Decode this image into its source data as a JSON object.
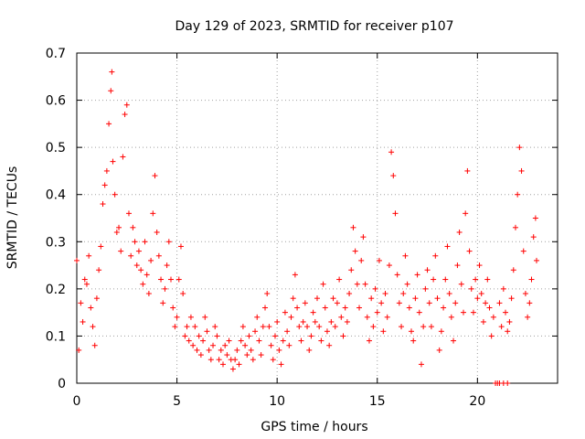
{
  "chart_data": {
    "type": "scatter",
    "title": "Day 129 of 2023, SRMTID for receiver p107",
    "xlabel": "GPS time / hours",
    "ylabel": "SRMTID / TECUs",
    "xlim": [
      0,
      24
    ],
    "ylim": [
      0,
      0.7
    ],
    "x_ticks": [
      0,
      5,
      10,
      15,
      20
    ],
    "x_tick_labels": [
      "0",
      "5",
      "10",
      "15",
      "20"
    ],
    "y_ticks": [
      0,
      0.1,
      0.2,
      0.3,
      0.4,
      0.5,
      0.6,
      0.7
    ],
    "y_tick_labels": [
      "0",
      "0.1",
      "0.2",
      "0.3",
      "0.4",
      "0.5",
      "0.6",
      "0.7"
    ],
    "grid": true,
    "marker": "+",
    "color": "#ff0000",
    "series": [
      {
        "name": "SRMTID p107",
        "points": [
          [
            0.0,
            0.26
          ],
          [
            0.1,
            0.07
          ],
          [
            0.2,
            0.17
          ],
          [
            0.3,
            0.13
          ],
          [
            0.4,
            0.22
          ],
          [
            0.5,
            0.21
          ],
          [
            0.6,
            0.27
          ],
          [
            0.7,
            0.16
          ],
          [
            0.8,
            0.12
          ],
          [
            0.9,
            0.08
          ],
          [
            1.0,
            0.18
          ],
          [
            1.1,
            0.24
          ],
          [
            1.2,
            0.29
          ],
          [
            1.3,
            0.38
          ],
          [
            1.4,
            0.42
          ],
          [
            1.5,
            0.45
          ],
          [
            1.6,
            0.55
          ],
          [
            1.7,
            0.62
          ],
          [
            1.75,
            0.66
          ],
          [
            1.8,
            0.47
          ],
          [
            1.9,
            0.4
          ],
          [
            2.0,
            0.32
          ],
          [
            2.1,
            0.33
          ],
          [
            2.2,
            0.28
          ],
          [
            2.3,
            0.48
          ],
          [
            2.4,
            0.57
          ],
          [
            2.5,
            0.59
          ],
          [
            2.6,
            0.36
          ],
          [
            2.7,
            0.27
          ],
          [
            2.8,
            0.33
          ],
          [
            2.9,
            0.3
          ],
          [
            3.0,
            0.25
          ],
          [
            3.1,
            0.28
          ],
          [
            3.2,
            0.24
          ],
          [
            3.3,
            0.21
          ],
          [
            3.4,
            0.3
          ],
          [
            3.5,
            0.23
          ],
          [
            3.6,
            0.19
          ],
          [
            3.7,
            0.26
          ],
          [
            3.8,
            0.36
          ],
          [
            3.9,
            0.44
          ],
          [
            4.0,
            0.32
          ],
          [
            4.1,
            0.27
          ],
          [
            4.2,
            0.22
          ],
          [
            4.3,
            0.17
          ],
          [
            4.4,
            0.2
          ],
          [
            4.5,
            0.25
          ],
          [
            4.6,
            0.3
          ],
          [
            4.7,
            0.22
          ],
          [
            4.8,
            0.16
          ],
          [
            4.9,
            0.12
          ],
          [
            5.0,
            0.14
          ],
          [
            5.1,
            0.22
          ],
          [
            5.2,
            0.29
          ],
          [
            5.3,
            0.19
          ],
          [
            5.4,
            0.1
          ],
          [
            5.5,
            0.12
          ],
          [
            5.6,
            0.09
          ],
          [
            5.7,
            0.14
          ],
          [
            5.8,
            0.08
          ],
          [
            5.9,
            0.12
          ],
          [
            6.0,
            0.07
          ],
          [
            6.1,
            0.1
          ],
          [
            6.2,
            0.06
          ],
          [
            6.3,
            0.09
          ],
          [
            6.4,
            0.14
          ],
          [
            6.5,
            0.11
          ],
          [
            6.6,
            0.07
          ],
          [
            6.7,
            0.05
          ],
          [
            6.8,
            0.08
          ],
          [
            6.9,
            0.12
          ],
          [
            7.0,
            0.1
          ],
          [
            7.1,
            0.05
          ],
          [
            7.2,
            0.07
          ],
          [
            7.3,
            0.04
          ],
          [
            7.4,
            0.08
          ],
          [
            7.5,
            0.06
          ],
          [
            7.6,
            0.09
          ],
          [
            7.7,
            0.05
          ],
          [
            7.8,
            0.03
          ],
          [
            7.9,
            0.05
          ],
          [
            8.0,
            0.07
          ],
          [
            8.1,
            0.04
          ],
          [
            8.2,
            0.09
          ],
          [
            8.3,
            0.12
          ],
          [
            8.4,
            0.08
          ],
          [
            8.5,
            0.06
          ],
          [
            8.6,
            0.1
          ],
          [
            8.7,
            0.07
          ],
          [
            8.8,
            0.05
          ],
          [
            8.9,
            0.11
          ],
          [
            9.0,
            0.14
          ],
          [
            9.1,
            0.09
          ],
          [
            9.2,
            0.06
          ],
          [
            9.3,
            0.12
          ],
          [
            9.4,
            0.16
          ],
          [
            9.5,
            0.19
          ],
          [
            9.6,
            0.12
          ],
          [
            9.7,
            0.08
          ],
          [
            9.8,
            0.05
          ],
          [
            9.9,
            0.1
          ],
          [
            10.0,
            0.13
          ],
          [
            10.1,
            0.07
          ],
          [
            10.2,
            0.04
          ],
          [
            10.3,
            0.09
          ],
          [
            10.4,
            0.15
          ],
          [
            10.5,
            0.11
          ],
          [
            10.6,
            0.08
          ],
          [
            10.7,
            0.14
          ],
          [
            10.8,
            0.18
          ],
          [
            10.9,
            0.23
          ],
          [
            11.0,
            0.16
          ],
          [
            11.1,
            0.12
          ],
          [
            11.2,
            0.09
          ],
          [
            11.3,
            0.13
          ],
          [
            11.4,
            0.17
          ],
          [
            11.5,
            0.12
          ],
          [
            11.6,
            0.07
          ],
          [
            11.7,
            0.1
          ],
          [
            11.8,
            0.15
          ],
          [
            11.9,
            0.13
          ],
          [
            12.0,
            0.18
          ],
          [
            12.1,
            0.12
          ],
          [
            12.2,
            0.09
          ],
          [
            12.3,
            0.21
          ],
          [
            12.4,
            0.16
          ],
          [
            12.5,
            0.11
          ],
          [
            12.6,
            0.08
          ],
          [
            12.7,
            0.13
          ],
          [
            12.8,
            0.18
          ],
          [
            12.9,
            0.12
          ],
          [
            13.0,
            0.17
          ],
          [
            13.1,
            0.22
          ],
          [
            13.2,
            0.14
          ],
          [
            13.3,
            0.1
          ],
          [
            13.4,
            0.16
          ],
          [
            13.5,
            0.13
          ],
          [
            13.6,
            0.19
          ],
          [
            13.7,
            0.24
          ],
          [
            13.8,
            0.33
          ],
          [
            13.9,
            0.28
          ],
          [
            14.0,
            0.21
          ],
          [
            14.1,
            0.16
          ],
          [
            14.2,
            0.26
          ],
          [
            14.3,
            0.31
          ],
          [
            14.4,
            0.21
          ],
          [
            14.5,
            0.14
          ],
          [
            14.6,
            0.09
          ],
          [
            14.7,
            0.18
          ],
          [
            14.8,
            0.12
          ],
          [
            14.9,
            0.2
          ],
          [
            15.0,
            0.15
          ],
          [
            15.1,
            0.26
          ],
          [
            15.2,
            0.17
          ],
          [
            15.3,
            0.11
          ],
          [
            15.4,
            0.19
          ],
          [
            15.5,
            0.14
          ],
          [
            15.6,
            0.25
          ],
          [
            15.7,
            0.49
          ],
          [
            15.8,
            0.44
          ],
          [
            15.9,
            0.36
          ],
          [
            16.0,
            0.23
          ],
          [
            16.1,
            0.17
          ],
          [
            16.2,
            0.12
          ],
          [
            16.3,
            0.19
          ],
          [
            16.4,
            0.27
          ],
          [
            16.5,
            0.21
          ],
          [
            16.6,
            0.16
          ],
          [
            16.7,
            0.11
          ],
          [
            16.8,
            0.09
          ],
          [
            16.9,
            0.18
          ],
          [
            17.0,
            0.23
          ],
          [
            17.1,
            0.15
          ],
          [
            17.2,
            0.04
          ],
          [
            17.3,
            0.12
          ],
          [
            17.4,
            0.2
          ],
          [
            17.5,
            0.24
          ],
          [
            17.6,
            0.17
          ],
          [
            17.7,
            0.12
          ],
          [
            17.8,
            0.22
          ],
          [
            17.9,
            0.27
          ],
          [
            18.0,
            0.18
          ],
          [
            18.1,
            0.07
          ],
          [
            18.2,
            0.11
          ],
          [
            18.3,
            0.16
          ],
          [
            18.4,
            0.22
          ],
          [
            18.5,
            0.29
          ],
          [
            18.6,
            0.19
          ],
          [
            18.7,
            0.14
          ],
          [
            18.8,
            0.09
          ],
          [
            18.9,
            0.17
          ],
          [
            19.0,
            0.25
          ],
          [
            19.1,
            0.32
          ],
          [
            19.2,
            0.21
          ],
          [
            19.3,
            0.15
          ],
          [
            19.4,
            0.36
          ],
          [
            19.5,
            0.45
          ],
          [
            19.6,
            0.28
          ],
          [
            19.7,
            0.2
          ],
          [
            19.8,
            0.15
          ],
          [
            19.9,
            0.22
          ],
          [
            20.0,
            0.18
          ],
          [
            20.1,
            0.25
          ],
          [
            20.2,
            0.19
          ],
          [
            20.3,
            0.13
          ],
          [
            20.4,
            0.17
          ],
          [
            20.5,
            0.22
          ],
          [
            20.6,
            0.16
          ],
          [
            20.7,
            0.1
          ],
          [
            20.8,
            0.14
          ],
          [
            20.9,
            0.0
          ],
          [
            21.0,
            0.0
          ],
          [
            21.1,
            0.0
          ],
          [
            21.3,
            0.0
          ],
          [
            21.5,
            0.0
          ],
          [
            21.1,
            0.17
          ],
          [
            21.2,
            0.12
          ],
          [
            21.3,
            0.2
          ],
          [
            21.4,
            0.15
          ],
          [
            21.5,
            0.11
          ],
          [
            21.6,
            0.13
          ],
          [
            21.7,
            0.18
          ],
          [
            21.8,
            0.24
          ],
          [
            21.9,
            0.33
          ],
          [
            22.0,
            0.4
          ],
          [
            22.1,
            0.5
          ],
          [
            22.2,
            0.45
          ],
          [
            22.3,
            0.28
          ],
          [
            22.4,
            0.19
          ],
          [
            22.5,
            0.14
          ],
          [
            22.6,
            0.17
          ],
          [
            22.7,
            0.22
          ],
          [
            22.8,
            0.31
          ],
          [
            22.9,
            0.35
          ],
          [
            22.95,
            0.26
          ]
        ]
      }
    ]
  }
}
